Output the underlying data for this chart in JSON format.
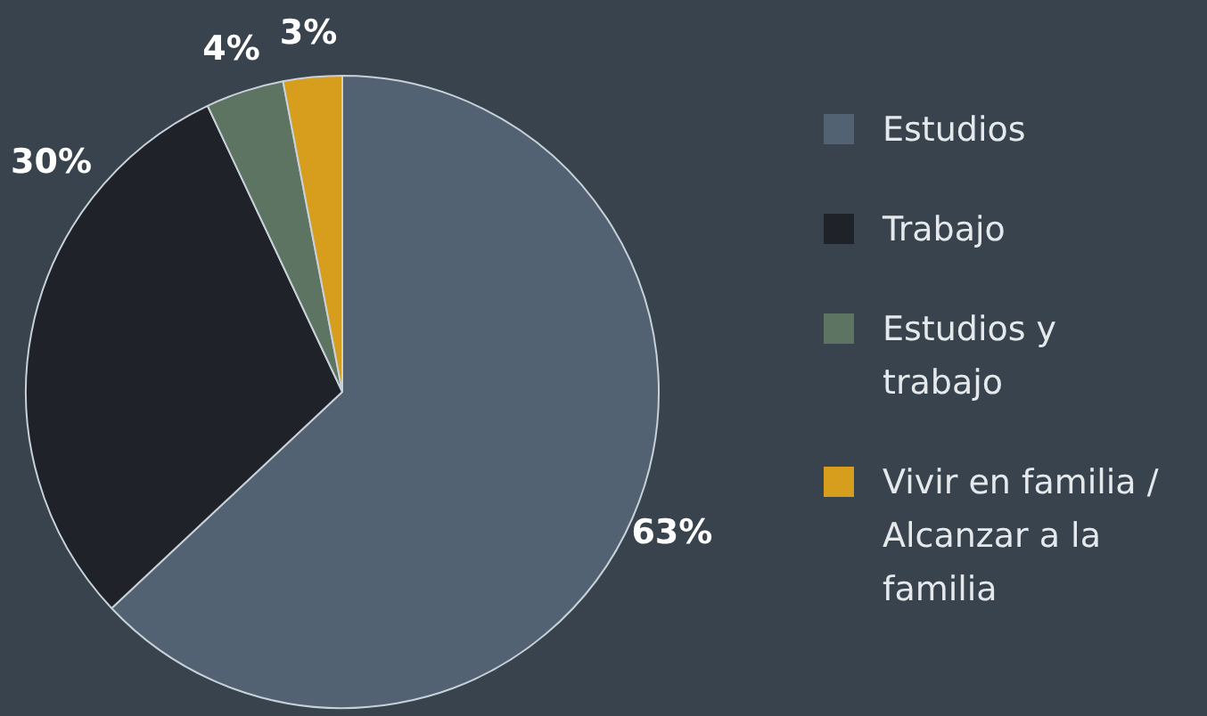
{
  "chart_data": {
    "type": "pie",
    "categories": [
      "Estudios",
      "Trabajo",
      "Estudios y trabajo",
      "Vivir en familia / Alcanzar a la familia"
    ],
    "values": [
      63,
      30,
      4,
      3
    ],
    "colors": [
      "#536272",
      "#1f2229",
      "#5e7462",
      "#d69e1c"
    ],
    "value_labels": [
      "63%",
      "30%",
      "4%",
      "3%"
    ],
    "legend": "right"
  }
}
